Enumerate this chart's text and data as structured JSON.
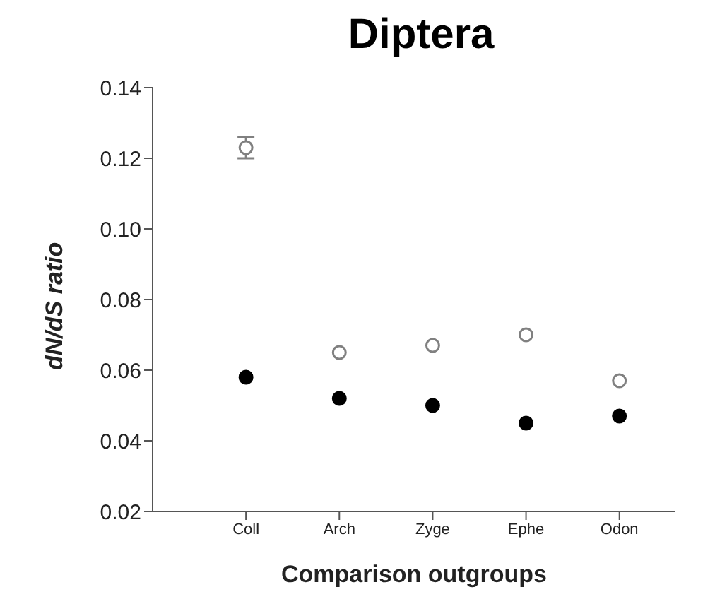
{
  "chart_data": {
    "type": "scatter",
    "title": "Diptera",
    "xlabel": "Comparison outgroups",
    "ylabel": "dN/dS ratio",
    "categories": [
      "Coll",
      "Arch",
      "Zyge",
      "Ephe",
      "Odon"
    ],
    "series": [
      {
        "color": "#808080",
        "values": [
          0.123,
          0.065,
          0.067,
          0.07,
          0.057
        ],
        "errors": [
          0.003,
          null,
          null,
          null,
          null
        ]
      },
      {
        "color": "#000000",
        "values": [
          0.058,
          0.052,
          0.05,
          0.045,
          0.047
        ]
      }
    ],
    "ylim": [
      0.02,
      0.14
    ],
    "yticks": [
      0.02,
      0.04,
      0.06,
      0.08,
      {
        "value": 0.1,
        "label": "0.10"
      },
      0.12,
      0.14
    ],
    "marker": "circle",
    "grid": false,
    "legend": false
  }
}
